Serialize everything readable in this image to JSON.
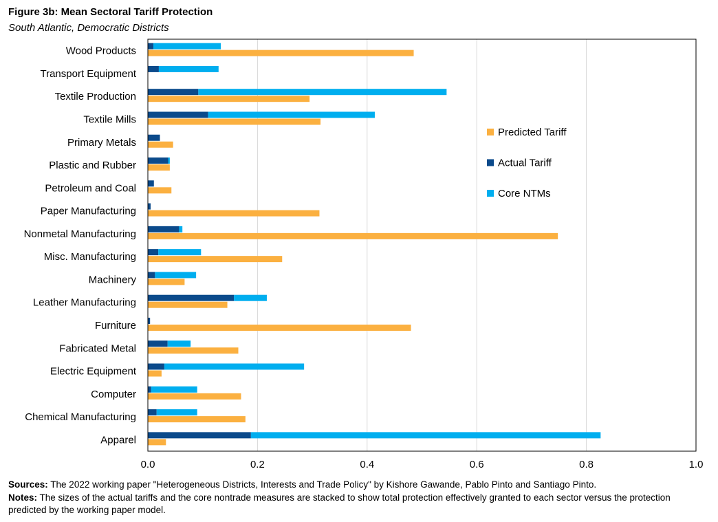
{
  "header": {
    "title": "Figure 3b: Mean Sectoral Tariff Protection",
    "subtitle": "South Atlantic, Democratic Districts"
  },
  "footer": {
    "sources_label": "Sources:",
    "sources_text": "The 2022  working paper \"Heterogeneous Districts, Interests and Trade Policy\" by Kishore Gawande, Pablo Pinto and Santiago Pinto.",
    "notes_label": "Notes:",
    "notes_text": "The sizes of the actual tariffs and the core nontrade measures are stacked to show total protection effectively granted to each sector versus the protection predicted by the working paper model."
  },
  "colors": {
    "predicted": "#FBB040",
    "actual": "#0B4A8B",
    "ntm": "#00AEEF",
    "grid": "#D9D9D9",
    "axis": "#000000"
  },
  "chart_data": {
    "type": "bar",
    "orientation": "horizontal",
    "stacked_series": [
      "Actual Tariff",
      "Core NTMs"
    ],
    "categories": [
      "Wood Products",
      "Transport Equipment",
      "Textile Production",
      "Textile Mills",
      "Primary Metals",
      "Plastic and Rubber",
      "Petroleum and Coal",
      "Paper Manufacturing",
      "Nonmetal Manufacturing",
      "Misc. Manufacturing",
      "Machinery",
      "Leather Manufacturing",
      "Furniture",
      "Fabricated Metal",
      "Electric Equipment",
      "Computer",
      "Chemical Manufacturing",
      "Apparel"
    ],
    "series": [
      {
        "name": "Predicted Tariff",
        "color": "#FBB040",
        "values": [
          0.485,
          0,
          0.295,
          0.315,
          0.046,
          0.04,
          0.043,
          0.313,
          0.748,
          0.245,
          0.067,
          0.145,
          0.48,
          0.165,
          0.025,
          0.17,
          0.178,
          0.033
        ]
      },
      {
        "name": "Actual Tariff",
        "color": "#0B4A8B",
        "values": [
          0.01,
          0.02,
          0.092,
          0.11,
          0.022,
          0.037,
          0.011,
          0.005,
          0.057,
          0.019,
          0.013,
          0.157,
          0.004,
          0.036,
          0.03,
          0.006,
          0.016,
          0.188
        ]
      },
      {
        "name": "Core NTMs",
        "color": "#00AEEF",
        "values": [
          0.123,
          0.109,
          0.453,
          0.304,
          0,
          0.003,
          0,
          0,
          0.006,
          0.078,
          0.075,
          0.06,
          0,
          0.042,
          0.255,
          0.084,
          0.074,
          0.638
        ]
      }
    ],
    "xlim": [
      0,
      1.0
    ],
    "xticks": [
      "0.0",
      "0.2",
      "0.4",
      "0.6",
      "0.8",
      "1.0"
    ],
    "legend": [
      "Predicted Tariff",
      "Actual Tariff",
      "Core NTMs"
    ],
    "legend_position": "right",
    "grid": true
  }
}
